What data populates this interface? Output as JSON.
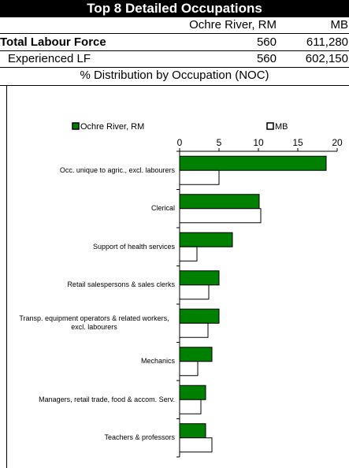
{
  "header": {
    "title": "Top 8 Detailed Occupations",
    "columns": [
      "Ochre River, RM",
      "MB"
    ]
  },
  "table": {
    "rows": [
      [
        "Total Labour Force",
        "560",
        "611,280"
      ],
      [
        "Experienced LF",
        "560",
        "602,150"
      ]
    ]
  },
  "subtitle": "% Distribution by Occupation (NOC)",
  "chart_data": {
    "type": "bar",
    "orientation": "horizontal",
    "categories": [
      "Occ. unique to agric., excl. labourers",
      "Clerical",
      "Support of health services",
      "Retail salespersons & sales clerks",
      "Transp. equipment operators & related workers, excl. labourers",
      "Mechanics",
      "Managers, retail trade, food & accom. Serv.",
      "Teachers & professors"
    ],
    "series": [
      {
        "name": "Ochre River, RM",
        "color": "#008000",
        "values": [
          18.6,
          10.1,
          6.7,
          5.0,
          5.0,
          4.1,
          3.3,
          3.3
        ]
      },
      {
        "name": "MB",
        "color": "#ffffff",
        "values": [
          5.0,
          10.3,
          2.2,
          3.7,
          3.6,
          2.3,
          2.7,
          4.1
        ]
      }
    ],
    "xlim": [
      0,
      20
    ],
    "xticks": [
      0,
      5,
      10,
      15,
      20
    ]
  }
}
